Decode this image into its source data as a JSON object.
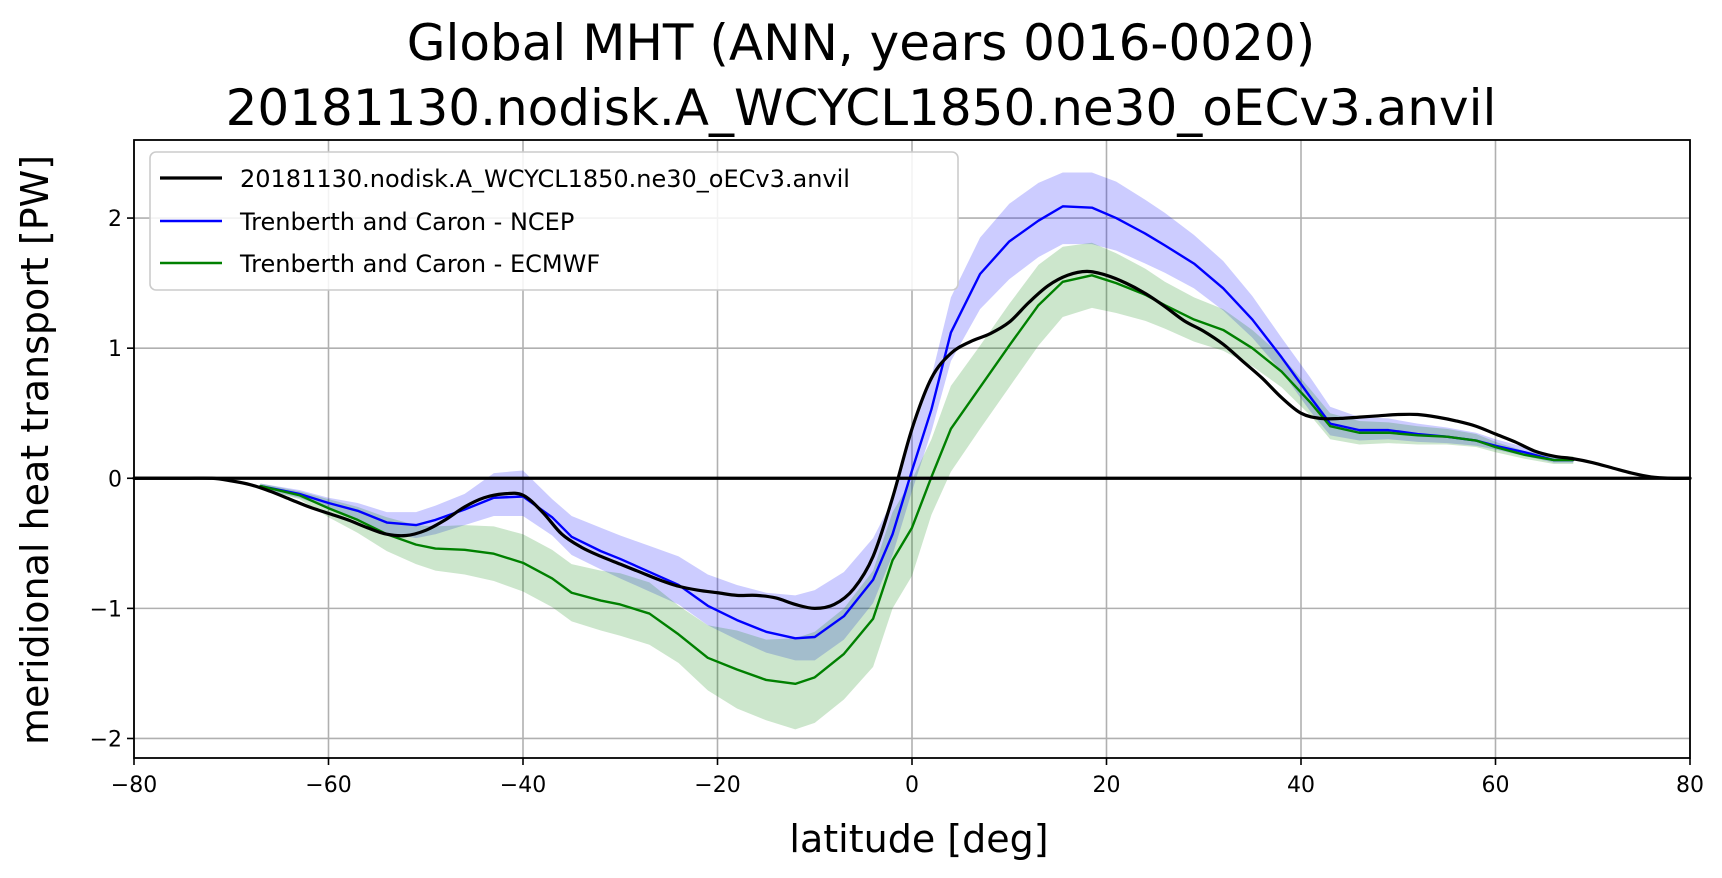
{
  "chart_data": {
    "type": "line",
    "title": [
      "Global MHT (ANN, years 0016-0020)",
      "20181130.nodisk.A_WCYCL1850.ne30_oECv3.anvil"
    ],
    "xlabel": "latitude [deg]",
    "ylabel": "meridional heat transport [PW]",
    "xlim": [
      -80,
      80
    ],
    "ylim": [
      -2.15,
      2.6
    ],
    "xticks": [
      -80,
      -60,
      -40,
      -20,
      0,
      20,
      40,
      60,
      80
    ],
    "xtick_labels": [
      "−80",
      "−60",
      "−40",
      "−20",
      "0",
      "20",
      "40",
      "60",
      "80"
    ],
    "yticks": [
      -2,
      -1,
      0,
      1,
      2
    ],
    "ytick_labels": [
      "−2",
      "−1",
      "0",
      "1",
      "2"
    ],
    "grid": true,
    "legend_position": "top-left",
    "series": [
      {
        "name": "20181130.nodisk.A_WCYCL1850.ne30_oECv3.anvil",
        "color": "#000000",
        "x": [
          -80,
          -75,
          -72,
          -70,
          -68,
          -66,
          -64,
          -62,
          -60,
          -58,
          -56,
          -54,
          -52,
          -50,
          -48,
          -46,
          -44,
          -42,
          -40,
          -38,
          -36,
          -34,
          -32,
          -30,
          -28,
          -26,
          -24,
          -22,
          -20,
          -18,
          -16,
          -14,
          -12,
          -10,
          -8,
          -6,
          -4,
          -2,
          0,
          2,
          4,
          6,
          8,
          10,
          12,
          14,
          16,
          18,
          20,
          22,
          24,
          26,
          28,
          30,
          32,
          34,
          36,
          38,
          40,
          42,
          44,
          46,
          48,
          50,
          52,
          54,
          56,
          58,
          60,
          62,
          64,
          66,
          68,
          70,
          72,
          74,
          76,
          78,
          80
        ],
        "y": [
          0.0,
          0.0,
          0.0,
          -0.02,
          -0.05,
          -0.1,
          -0.16,
          -0.22,
          -0.27,
          -0.32,
          -0.38,
          -0.43,
          -0.44,
          -0.4,
          -0.32,
          -0.22,
          -0.15,
          -0.12,
          -0.13,
          -0.26,
          -0.43,
          -0.53,
          -0.6,
          -0.66,
          -0.72,
          -0.78,
          -0.83,
          -0.86,
          -0.88,
          -0.9,
          -0.9,
          -0.92,
          -0.97,
          -1.0,
          -0.97,
          -0.85,
          -0.6,
          -0.15,
          0.38,
          0.77,
          0.96,
          1.05,
          1.11,
          1.2,
          1.35,
          1.48,
          1.56,
          1.59,
          1.56,
          1.5,
          1.42,
          1.32,
          1.21,
          1.13,
          1.03,
          0.9,
          0.77,
          0.62,
          0.5,
          0.46,
          0.46,
          0.47,
          0.48,
          0.49,
          0.49,
          0.47,
          0.44,
          0.4,
          0.34,
          0.28,
          0.21,
          0.17,
          0.15,
          0.12,
          0.08,
          0.04,
          0.01,
          0.0,
          0.0
        ]
      },
      {
        "name": "Trenberth and Caron - NCEP",
        "color": "#0000ff",
        "x": [
          -67,
          -63,
          -60,
          -57,
          -54,
          -51,
          -49,
          -46,
          -43,
          -40,
          -37,
          -35,
          -32,
          -30,
          -27,
          -24,
          -21,
          -18,
          -15,
          -12,
          -10,
          -7,
          -4,
          -2,
          0,
          2,
          4,
          7,
          10,
          13,
          15.5,
          18.5,
          21,
          24,
          26,
          29,
          32,
          35,
          38,
          41,
          43,
          46,
          49,
          52,
          55,
          58,
          60,
          63,
          66,
          68
        ],
        "y": [
          -0.06,
          -0.12,
          -0.19,
          -0.25,
          -0.34,
          -0.36,
          -0.32,
          -0.24,
          -0.15,
          -0.14,
          -0.3,
          -0.45,
          -0.56,
          -0.62,
          -0.72,
          -0.82,
          -0.98,
          -1.09,
          -1.18,
          -1.23,
          -1.22,
          -1.06,
          -0.78,
          -0.43,
          0.06,
          0.53,
          1.12,
          1.57,
          1.82,
          1.98,
          2.09,
          2.08,
          2.0,
          1.88,
          1.79,
          1.65,
          1.46,
          1.22,
          0.93,
          0.62,
          0.42,
          0.37,
          0.37,
          0.34,
          0.32,
          0.29,
          0.25,
          0.2,
          0.14,
          0.14
        ],
        "band_lower": [
          -0.08,
          -0.15,
          -0.23,
          -0.31,
          -0.42,
          -0.46,
          -0.43,
          -0.36,
          -0.29,
          -0.29,
          -0.44,
          -0.59,
          -0.7,
          -0.77,
          -0.87,
          -0.97,
          -1.13,
          -1.24,
          -1.34,
          -1.4,
          -1.4,
          -1.24,
          -0.96,
          -0.59,
          -0.1,
          0.36,
          0.9,
          1.3,
          1.53,
          1.7,
          1.8,
          1.8,
          1.75,
          1.65,
          1.58,
          1.46,
          1.29,
          1.08,
          0.82,
          0.51,
          0.33,
          0.29,
          0.3,
          0.28,
          0.27,
          0.25,
          0.22,
          0.17,
          0.12,
          0.12
        ],
        "band_upper": [
          -0.04,
          -0.09,
          -0.15,
          -0.19,
          -0.26,
          -0.26,
          -0.21,
          -0.12,
          0.04,
          0.06,
          -0.16,
          -0.29,
          -0.38,
          -0.44,
          -0.52,
          -0.6,
          -0.74,
          -0.82,
          -0.88,
          -0.9,
          -0.86,
          -0.72,
          -0.46,
          -0.17,
          0.34,
          0.78,
          1.39,
          1.85,
          2.11,
          2.27,
          2.35,
          2.35,
          2.28,
          2.14,
          2.04,
          1.87,
          1.67,
          1.4,
          1.08,
          0.77,
          0.55,
          0.47,
          0.46,
          0.42,
          0.39,
          0.35,
          0.3,
          0.24,
          0.17,
          0.16
        ]
      },
      {
        "name": "Trenberth and Caron - ECMWF",
        "color": "#008000",
        "x": [
          -67,
          -63,
          -60,
          -57,
          -54,
          -51,
          -49,
          -46,
          -43,
          -40,
          -37,
          -35,
          -32,
          -30,
          -27,
          -24,
          -21,
          -18,
          -15,
          -12,
          -10,
          -7,
          -4,
          -2,
          0,
          2,
          4,
          7,
          10,
          13,
          15.5,
          18.5,
          21,
          24,
          26,
          29,
          32,
          35,
          38,
          41,
          43,
          46,
          49,
          52,
          55,
          58,
          60,
          63,
          66,
          68
        ],
        "y": [
          -0.06,
          -0.13,
          -0.23,
          -0.32,
          -0.43,
          -0.51,
          -0.54,
          -0.55,
          -0.58,
          -0.65,
          -0.77,
          -0.88,
          -0.94,
          -0.97,
          -1.04,
          -1.2,
          -1.38,
          -1.47,
          -1.55,
          -1.58,
          -1.53,
          -1.35,
          -1.08,
          -0.63,
          -0.38,
          0.01,
          0.38,
          0.7,
          1.02,
          1.33,
          1.51,
          1.56,
          1.5,
          1.41,
          1.33,
          1.22,
          1.14,
          1.0,
          0.82,
          0.58,
          0.4,
          0.35,
          0.35,
          0.33,
          0.32,
          0.29,
          0.24,
          0.18,
          0.14,
          0.14
        ],
        "band_lower": [
          -0.08,
          -0.16,
          -0.3,
          -0.42,
          -0.56,
          -0.66,
          -0.71,
          -0.74,
          -0.79,
          -0.87,
          -0.99,
          -1.1,
          -1.17,
          -1.21,
          -1.28,
          -1.42,
          -1.63,
          -1.77,
          -1.86,
          -1.93,
          -1.88,
          -1.7,
          -1.45,
          -1.0,
          -0.75,
          -0.28,
          0.05,
          0.38,
          0.7,
          1.02,
          1.24,
          1.31,
          1.27,
          1.21,
          1.15,
          1.05,
          0.98,
          0.86,
          0.7,
          0.48,
          0.3,
          0.26,
          0.27,
          0.26,
          0.26,
          0.24,
          0.2,
          0.15,
          0.11,
          0.11
        ],
        "band_upper": [
          -0.04,
          -0.1,
          -0.16,
          -0.22,
          -0.3,
          -0.36,
          -0.37,
          -0.36,
          -0.37,
          -0.43,
          -0.55,
          -0.66,
          -0.71,
          -0.73,
          -0.8,
          -0.98,
          -1.13,
          -1.17,
          -1.24,
          -1.23,
          -1.18,
          -1.0,
          -0.71,
          -0.26,
          -0.01,
          0.3,
          0.71,
          1.02,
          1.34,
          1.64,
          1.78,
          1.81,
          1.73,
          1.61,
          1.51,
          1.39,
          1.3,
          1.14,
          0.94,
          0.68,
          0.5,
          0.44,
          0.43,
          0.4,
          0.38,
          0.34,
          0.28,
          0.21,
          0.17,
          0.17
        ]
      }
    ]
  }
}
